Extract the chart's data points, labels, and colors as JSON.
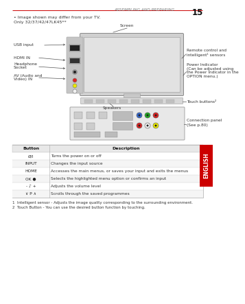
{
  "page_header": "ASSEMBLING AND PREPARING",
  "page_number": "15",
  "subtitle": "Only 32/37/42/47LK45**",
  "bullet_note": "Image shown may differ from your TV.",
  "sidebar_text": "ENGLISH",
  "bg_color": "#ffffff",
  "header_line_color": "#cc0000",
  "table_headers": [
    "Button",
    "Description"
  ],
  "table_rows": [
    [
      "Ø/I",
      "Turns the power on or off"
    ],
    [
      "INPUT",
      "Changes the input source"
    ],
    [
      "HOME",
      "Accesses the main menus, or saves your input and exits the menus"
    ],
    [
      "OK ●",
      "Selects the highlighted menu option or confirms an input"
    ],
    [
      "- ♪ +",
      "Adjusts the volume level"
    ],
    [
      "∨ P ∧",
      "Scrolls through the saved programmes"
    ]
  ],
  "footnote1": "1  Intelligent sensor - Adjusts the image quality corresponding to the surrounding environment.",
  "footnote2": "2  Touch Button - You can use the desired button function by touching.",
  "label_usb": "USB input",
  "label_hdmi": "HDMI IN",
  "label_hp": "Headphone\nSocket",
  "label_av": "AV (Audio and\nVideo) IN",
  "label_remote": "Remote control and\nintelligent¹ sensors",
  "label_power": "Power Indicator\n(Can be adjusted using\nthe Power Indicator in the\nOPTION menu.)",
  "label_screen": "Screen",
  "label_speakers": "Speakers",
  "label_touch": "Touch buttons²",
  "label_connection": "Connection panel\n(See p.80)"
}
